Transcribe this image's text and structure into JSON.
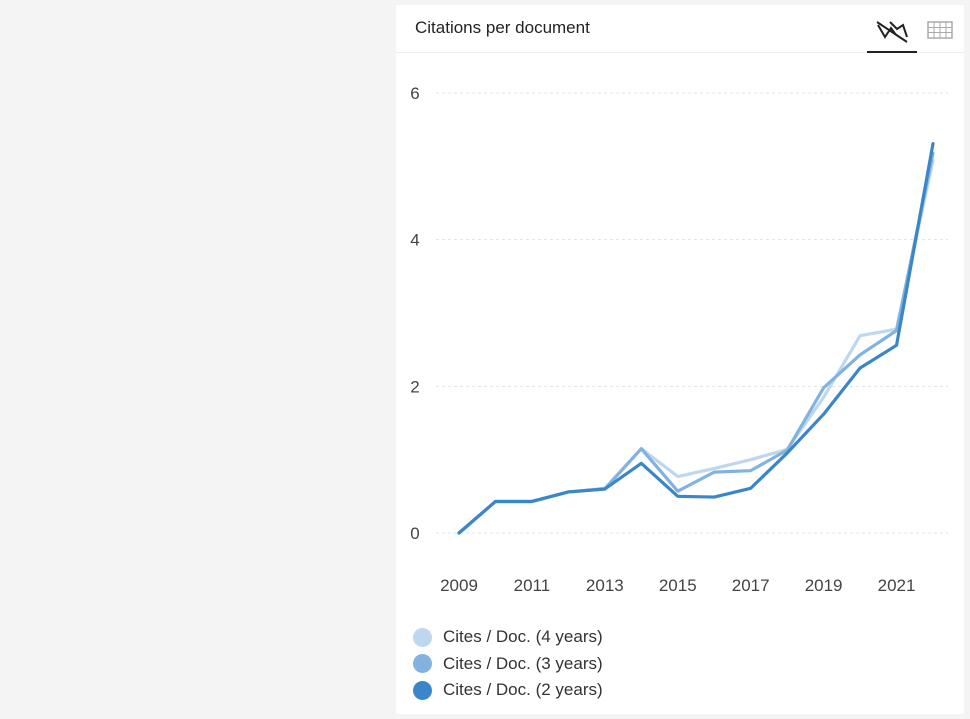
{
  "card": {
    "title": "Citations per document"
  },
  "icons": {
    "chart_toggle": "line-chart-icon",
    "table_toggle": "table-grid-icon"
  },
  "chart_data": {
    "type": "line",
    "title": "Citations per document",
    "xlabel": "",
    "ylabel": "",
    "x": [
      2009,
      2010,
      2011,
      2012,
      2013,
      2014,
      2015,
      2016,
      2017,
      2018,
      2019,
      2020,
      2021,
      2022
    ],
    "x_tick_labels": [
      "2009",
      "2011",
      "2013",
      "2015",
      "2017",
      "2019",
      "2021"
    ],
    "y_ticks": [
      0,
      2,
      4,
      6
    ],
    "ylim": [
      0,
      6
    ],
    "grid": "horizontal dashed",
    "legend_position": "bottom-left",
    "series": [
      {
        "name": "Cites / Doc. (4 years)",
        "color": "#bed7ef",
        "values": [
          0.0,
          0.43,
          0.43,
          0.56,
          0.61,
          1.15,
          0.77,
          0.88,
          1.0,
          1.14,
          1.85,
          2.69,
          2.78,
          5.08
        ]
      },
      {
        "name": "Cites / Doc. (3 years)",
        "color": "#82b2e0",
        "values": [
          0.0,
          0.43,
          0.43,
          0.56,
          0.6,
          1.15,
          0.57,
          0.83,
          0.85,
          1.13,
          1.98,
          2.43,
          2.76,
          5.18
        ]
      },
      {
        "name": "Cites / Doc. (2 years)",
        "color": "#3a86c8",
        "values": [
          0.0,
          0.43,
          0.43,
          0.56,
          0.6,
          0.95,
          0.5,
          0.49,
          0.61,
          1.09,
          1.62,
          2.25,
          2.56,
          5.31
        ]
      }
    ]
  }
}
